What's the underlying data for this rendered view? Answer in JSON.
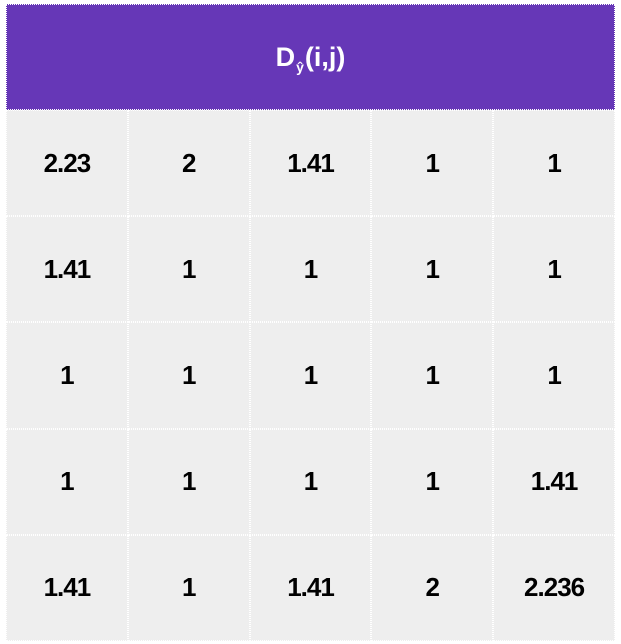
{
  "header": {
    "base": "D",
    "subscript": "ŷ",
    "args": "(i,j)"
  },
  "matrix": [
    [
      "2.23",
      "2",
      "1.41",
      "1",
      "1"
    ],
    [
      "1.41",
      "1",
      "1",
      "1",
      "1"
    ],
    [
      "1",
      "1",
      "1",
      "1",
      "1"
    ],
    [
      "1",
      "1",
      "1",
      "1",
      "1.41"
    ],
    [
      "1.41",
      "1",
      "1.41",
      "2",
      "2.236"
    ]
  ],
  "colors": {
    "header_bg": "#6637b7",
    "cell_bg": "#eeeeee",
    "text": "#000000"
  }
}
